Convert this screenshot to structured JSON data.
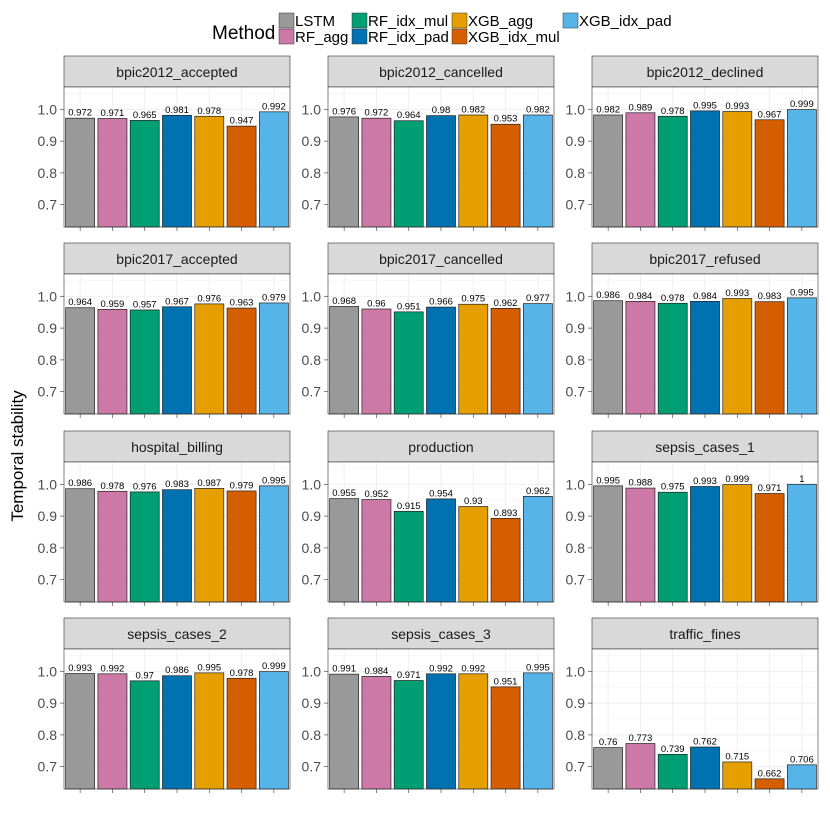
{
  "chart_data": {
    "type": "bar",
    "layout": "facet-grid",
    "ylabel": "Temporal stability",
    "ylim": [
      0.63,
      1.07
    ],
    "y_ticks": [
      0.7,
      0.8,
      0.9,
      1.0
    ],
    "y_tick_labels": [
      "0.7",
      "0.8",
      "0.9",
      "1.0"
    ],
    "legend": {
      "title": "Method",
      "position": "top",
      "entries": [
        {
          "name": "LSTM",
          "color": "#999999"
        },
        {
          "name": "RF_agg",
          "color": "#CC79A7"
        },
        {
          "name": "RF_idx_mul",
          "color": "#009E73"
        },
        {
          "name": "RF_idx_pad",
          "color": "#0072B2"
        },
        {
          "name": "XGB_agg",
          "color": "#E69F00"
        },
        {
          "name": "XGB_idx_mul",
          "color": "#D55E00"
        },
        {
          "name": "XGB_idx_pad",
          "color": "#56B4E9"
        }
      ]
    },
    "facets": [
      {
        "title": "bpic2012_accepted",
        "values": [
          0.972,
          0.971,
          0.965,
          0.981,
          0.978,
          0.947,
          0.992
        ],
        "labels": [
          "0.972",
          "0.971",
          "0.965",
          "0.981",
          "0.978",
          "0.947",
          "0.992"
        ]
      },
      {
        "title": "bpic2012_cancelled",
        "values": [
          0.976,
          0.972,
          0.964,
          0.98,
          0.982,
          0.953,
          0.982
        ],
        "labels": [
          "0.976",
          "0.972",
          "0.964",
          "0.98",
          "0.982",
          "0.953",
          "0.982"
        ]
      },
      {
        "title": "bpic2012_declined",
        "values": [
          0.982,
          0.989,
          0.978,
          0.995,
          0.993,
          0.967,
          0.999
        ],
        "labels": [
          "0.982",
          "0.989",
          "0.978",
          "0.995",
          "0.993",
          "0.967",
          "0.999"
        ]
      },
      {
        "title": "bpic2017_accepted",
        "values": [
          0.964,
          0.959,
          0.957,
          0.967,
          0.976,
          0.963,
          0.979
        ],
        "labels": [
          "0.964",
          "0.959",
          "0.957",
          "0.967",
          "0.976",
          "0.963",
          "0.979"
        ]
      },
      {
        "title": "bpic2017_cancelled",
        "values": [
          0.968,
          0.96,
          0.951,
          0.966,
          0.975,
          0.962,
          0.977
        ],
        "labels": [
          "0.968",
          "0.96",
          "0.951",
          "0.966",
          "0.975",
          "0.962",
          "0.977"
        ]
      },
      {
        "title": "bpic2017_refused",
        "values": [
          0.986,
          0.984,
          0.978,
          0.984,
          0.993,
          0.983,
          0.995
        ],
        "labels": [
          "0.986",
          "0.984",
          "0.978",
          "0.984",
          "0.993",
          "0.983",
          "0.995"
        ]
      },
      {
        "title": "hospital_billing",
        "values": [
          0.986,
          0.978,
          0.976,
          0.983,
          0.987,
          0.979,
          0.995
        ],
        "labels": [
          "0.986",
          "0.978",
          "0.976",
          "0.983",
          "0.987",
          "0.979",
          "0.995"
        ]
      },
      {
        "title": "production",
        "values": [
          0.955,
          0.952,
          0.915,
          0.954,
          0.93,
          0.893,
          0.962
        ],
        "labels": [
          "0.955",
          "0.952",
          "0.915",
          "0.954",
          "0.93",
          "0.893",
          "0.962"
        ]
      },
      {
        "title": "sepsis_cases_1",
        "values": [
          0.995,
          0.988,
          0.975,
          0.993,
          0.999,
          0.971,
          1
        ],
        "labels": [
          "0.995",
          "0.988",
          "0.975",
          "0.993",
          "0.999",
          "0.971",
          "1"
        ]
      },
      {
        "title": "sepsis_cases_2",
        "values": [
          0.993,
          0.992,
          0.97,
          0.986,
          0.995,
          0.978,
          0.999
        ],
        "labels": [
          "0.993",
          "0.992",
          "0.97",
          "0.986",
          "0.995",
          "0.978",
          "0.999"
        ]
      },
      {
        "title": "sepsis_cases_3",
        "values": [
          0.991,
          0.984,
          0.971,
          0.992,
          0.992,
          0.951,
          0.995
        ],
        "labels": [
          "0.991",
          "0.984",
          "0.971",
          "0.992",
          "0.992",
          "0.951",
          "0.995"
        ]
      },
      {
        "title": "traffic_fines",
        "values": [
          0.76,
          0.773,
          0.739,
          0.762,
          0.715,
          0.662,
          0.706
        ],
        "labels": [
          "0.76",
          "0.773",
          "0.739",
          "0.762",
          "0.715",
          "0.662",
          "0.706"
        ]
      }
    ]
  }
}
